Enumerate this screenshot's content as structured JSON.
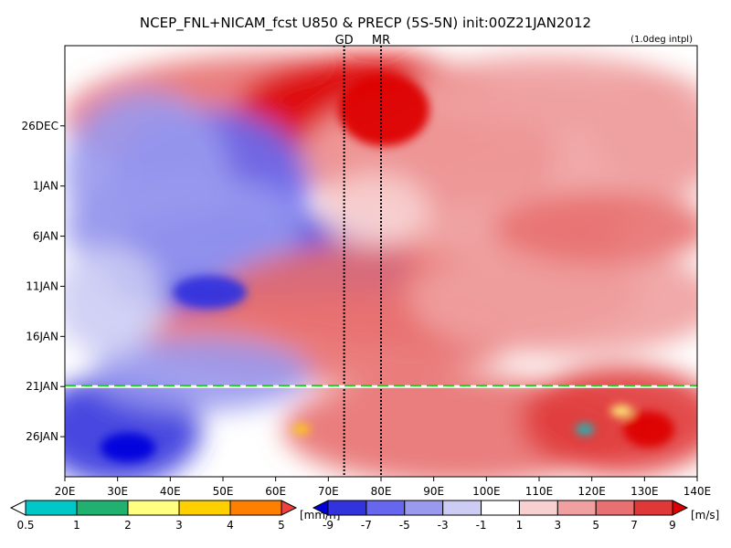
{
  "chart_data": {
    "type": "heatmap",
    "title": "NCEP_FNL+NICAM_fcst U850 & PRECP (5S-5N) init:00Z21JAN2012",
    "note": "(1.0deg intpl)",
    "x_ticks": [
      "20E",
      "30E",
      "40E",
      "50E",
      "60E",
      "70E",
      "80E",
      "90E",
      "100E",
      "110E",
      "120E",
      "130E",
      "140E"
    ],
    "x_values": [
      20,
      30,
      40,
      50,
      60,
      70,
      80,
      90,
      100,
      110,
      120,
      130,
      140
    ],
    "xlim": [
      20,
      140
    ],
    "y_ticks": [
      "26DEC",
      "1JAN",
      "6JAN",
      "11JAN",
      "16JAN",
      "21JAN",
      "26JAN"
    ],
    "y_values": [
      0,
      6,
      11,
      16,
      21,
      26,
      31
    ],
    "ylim": [
      -8,
      35
    ],
    "y_origin": "26DEC",
    "markers": [
      {
        "label": "GD",
        "x": 73
      },
      {
        "label": "MR",
        "x": 80
      }
    ],
    "init_line": {
      "label": "21JAN",
      "day": 26,
      "color": "#22cc22"
    },
    "precip_colorbar": {
      "unit": "[mm/h]",
      "levels": [
        "0.5",
        "1",
        "2",
        "3",
        "4",
        "5"
      ],
      "colors": [
        "#ffffff",
        "#00c8c8",
        "#20b070",
        "#ffff80",
        "#ffd000",
        "#ff8000",
        "#f04040"
      ]
    },
    "wind_colorbar": {
      "unit": "[m/s]",
      "levels": [
        "-9",
        "-7",
        "-5",
        "-3",
        "-1",
        "1",
        "3",
        "5",
        "7",
        "9"
      ],
      "colors": [
        "#0000dd",
        "#3333dd",
        "#6666ee",
        "#9999ee",
        "#ccccf4",
        "#ffffff",
        "#f8d0d0",
        "#f0a0a0",
        "#e87070",
        "#e03838",
        "#dd0000"
      ]
    }
  }
}
